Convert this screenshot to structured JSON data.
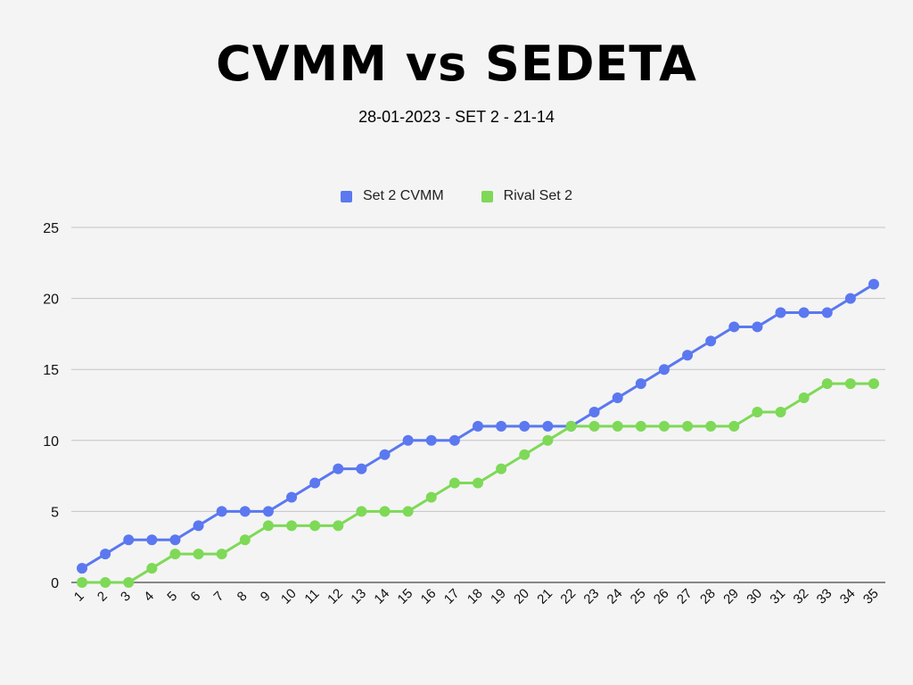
{
  "title": "CVMM vs SEDETA",
  "subtitle": "28-01-2023 - SET 2 - 21-14",
  "chart_data": {
    "type": "line",
    "title": "CVMM vs SEDETA",
    "subtitle": "28-01-2023 - SET 2 - 21-14",
    "xlabel": "",
    "ylabel": "",
    "categories": [
      "1",
      "2",
      "3",
      "4",
      "5",
      "6",
      "7",
      "8",
      "9",
      "10",
      "11",
      "12",
      "13",
      "14",
      "15",
      "16",
      "17",
      "18",
      "19",
      "20",
      "21",
      "22",
      "23",
      "24",
      "25",
      "26",
      "27",
      "28",
      "29",
      "30",
      "31",
      "32",
      "33",
      "34",
      "35"
    ],
    "y_ticks": [
      "0",
      "5",
      "10",
      "15",
      "20",
      "25"
    ],
    "ylim": [
      0,
      25
    ],
    "grid": true,
    "legend_position": "top-center",
    "series": [
      {
        "name": "Set 2 CVMM",
        "color": "#5b78f0",
        "values": [
          1,
          2,
          3,
          3,
          3,
          4,
          5,
          5,
          5,
          6,
          7,
          8,
          8,
          9,
          10,
          10,
          10,
          11,
          11,
          11,
          11,
          11,
          12,
          13,
          14,
          15,
          16,
          17,
          18,
          18,
          19,
          19,
          19,
          20,
          21
        ]
      },
      {
        "name": "Rival Set 2",
        "color": "#7ed957",
        "values": [
          0,
          0,
          0,
          1,
          2,
          2,
          2,
          3,
          4,
          4,
          4,
          4,
          5,
          5,
          5,
          6,
          7,
          7,
          8,
          9,
          10,
          11,
          11,
          11,
          11,
          11,
          11,
          11,
          11,
          12,
          12,
          13,
          14,
          14,
          14
        ]
      }
    ]
  }
}
